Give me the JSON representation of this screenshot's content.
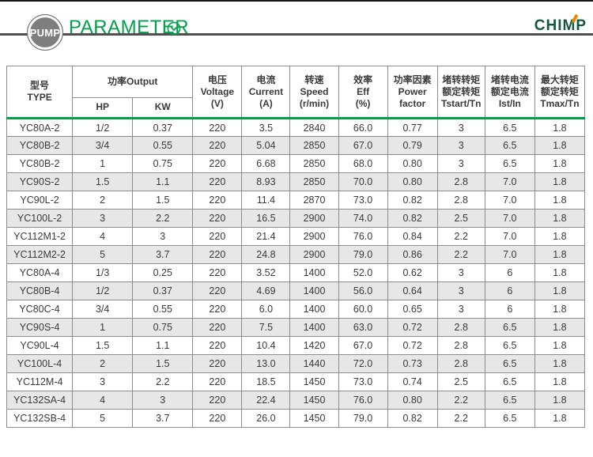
{
  "banner": {
    "badge_label": "PUMP",
    "title": "PARAMETER",
    "logo_text": "CHIMP"
  },
  "colors": {
    "accent_green": "#00A04A",
    "logo_green": "#14583C",
    "logo_orange": "#F08300",
    "badge_gray": "#7E7E7E",
    "alt_row_gray": "#E7E7E7",
    "grid_border": "#8C8C8C"
  },
  "table": {
    "header": {
      "type": "型号\nTYPE",
      "output": "功率Output",
      "hp": "HP",
      "kw": "KW",
      "voltage": "电压\nVoltage\n(V)",
      "current": "电流\nCurrent\n(A)",
      "speed": "转速\nSpeed\n(r/min)",
      "eff": "效率\nEff\n(%)",
      "power_factor": "功率因素\nPower\nfactor",
      "tstart_tn": "堵转转矩\n额定转矩\nTstart/Tn",
      "ist_in": "堵转电流\n额定电流\nIst/In",
      "tmax_tn": "最大转矩\n额定转矩\nTmax/Tn"
    },
    "rows": [
      [
        "YC80A-2",
        "1/2",
        "0.37",
        "220",
        "3.5",
        "2840",
        "66.0",
        "0.77",
        "3",
        "6.5",
        "1.8"
      ],
      [
        "YC80B-2",
        "3/4",
        "0.55",
        "220",
        "5.04",
        "2850",
        "67.0",
        "0.79",
        "3",
        "6.5",
        "1.8"
      ],
      [
        "YC80B-2",
        "1",
        "0.75",
        "220",
        "6.68",
        "2850",
        "68.0",
        "0.80",
        "3",
        "6.5",
        "1.8"
      ],
      [
        "YC90S-2",
        "1.5",
        "1.1",
        "220",
        "8.93",
        "2850",
        "70.0",
        "0.80",
        "2.8",
        "7.0",
        "1.8"
      ],
      [
        "YC90L-2",
        "2",
        "1.5",
        "220",
        "11.4",
        "2870",
        "73.0",
        "0.82",
        "2.8",
        "7.0",
        "1.8"
      ],
      [
        "YC100L-2",
        "3",
        "2.2",
        "220",
        "16.5",
        "2900",
        "74.0",
        "0.82",
        "2.5",
        "7.0",
        "1.8"
      ],
      [
        "YC112M1-2",
        "4",
        "3",
        "220",
        "21.4",
        "2900",
        "76.0",
        "0.84",
        "2.2",
        "7.0",
        "1.8"
      ],
      [
        "YC112M2-2",
        "5",
        "3.7",
        "220",
        "24.8",
        "2900",
        "79.0",
        "0.86",
        "2.2",
        "7.0",
        "1.8"
      ],
      [
        "YC80A-4",
        "1/3",
        "0.25",
        "220",
        "3.52",
        "1400",
        "52.0",
        "0.62",
        "3",
        "6",
        "1.8"
      ],
      [
        "YC80B-4",
        "1/2",
        "0.37",
        "220",
        "4.69",
        "1400",
        "56.0",
        "0.64",
        "3",
        "6",
        "1.8"
      ],
      [
        "YC80C-4",
        "3/4",
        "0.55",
        "220",
        "6.0",
        "1400",
        "60.0",
        "0.65",
        "3",
        "6",
        "1.8"
      ],
      [
        "YC90S-4",
        "1",
        "0.75",
        "220",
        "7.5",
        "1400",
        "63.0",
        "0.72",
        "2.8",
        "6.5",
        "1.8"
      ],
      [
        "YC90L-4",
        "1.5",
        "1.1",
        "220",
        "10.4",
        "1420",
        "67.0",
        "0.72",
        "2.8",
        "6.5",
        "1.8"
      ],
      [
        "YC100L-4",
        "2",
        "1.5",
        "220",
        "13.0",
        "1440",
        "72.0",
        "0.73",
        "2.8",
        "6.5",
        "1.8"
      ],
      [
        "YC112M-4",
        "3",
        "2.2",
        "220",
        "18.5",
        "1450",
        "73.0",
        "0.74",
        "2.5",
        "6.5",
        "1.8"
      ],
      [
        "YC132SA-4",
        "4",
        "3",
        "220",
        "22.4",
        "1450",
        "76.0",
        "0.80",
        "2.2",
        "6.5",
        "1.8"
      ],
      [
        "YC132SB-4",
        "5",
        "3.7",
        "220",
        "26.0",
        "1450",
        "79.0",
        "0.82",
        "2.2",
        "6.5",
        "1.8"
      ]
    ]
  }
}
